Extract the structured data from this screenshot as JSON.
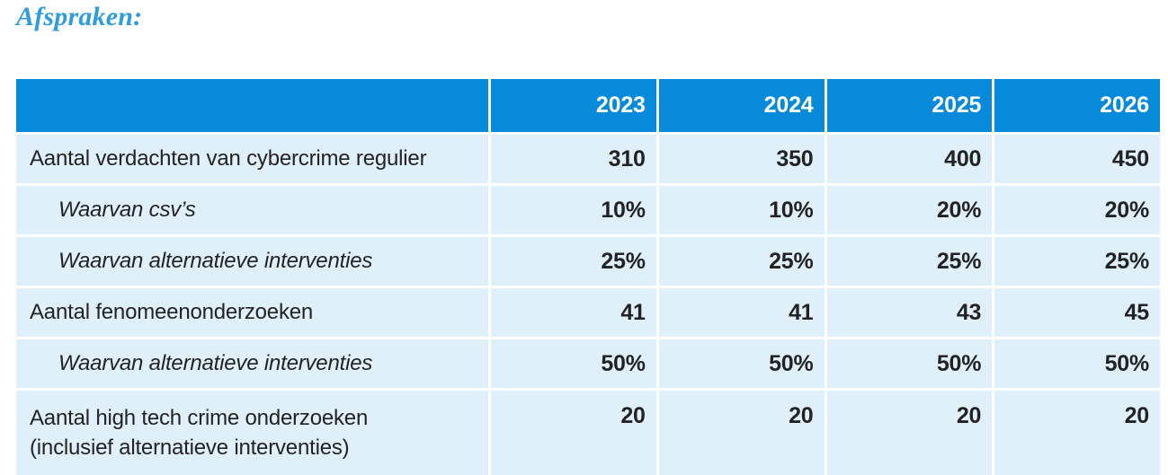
{
  "title": "Afspraken:",
  "colors": {
    "header_bg": "#078ad9",
    "cell_bg": "#dff0fb",
    "header_text": "#ffffff",
    "body_text": "#232323",
    "title_text": "#2e9cde"
  },
  "table": {
    "years": [
      "2023",
      "2024",
      "2025",
      "2026"
    ],
    "rows": [
      {
        "label": "Aantal verdachten van cybercrime regulier",
        "indent": false,
        "values": [
          "310",
          "350",
          "400",
          "450"
        ]
      },
      {
        "label": "Waarvan csv’s",
        "indent": true,
        "values": [
          "10%",
          "10%",
          "20%",
          "20%"
        ]
      },
      {
        "label": "Waarvan alternatieve interventies",
        "indent": true,
        "values": [
          "25%",
          "25%",
          "25%",
          "25%"
        ]
      },
      {
        "label": "Aantal fenomeenonderzoeken",
        "indent": false,
        "values": [
          "41",
          "41",
          "43",
          "45"
        ]
      },
      {
        "label": "Waarvan alternatieve interventies",
        "indent": true,
        "values": [
          "50%",
          "50%",
          "50%",
          "50%"
        ]
      },
      {
        "label": "Aantal high tech crime onderzoeken",
        "label_line2": "(inclusief alternatieve interventies)",
        "indent": false,
        "values": [
          "20",
          "20",
          "20",
          "20"
        ]
      }
    ]
  }
}
